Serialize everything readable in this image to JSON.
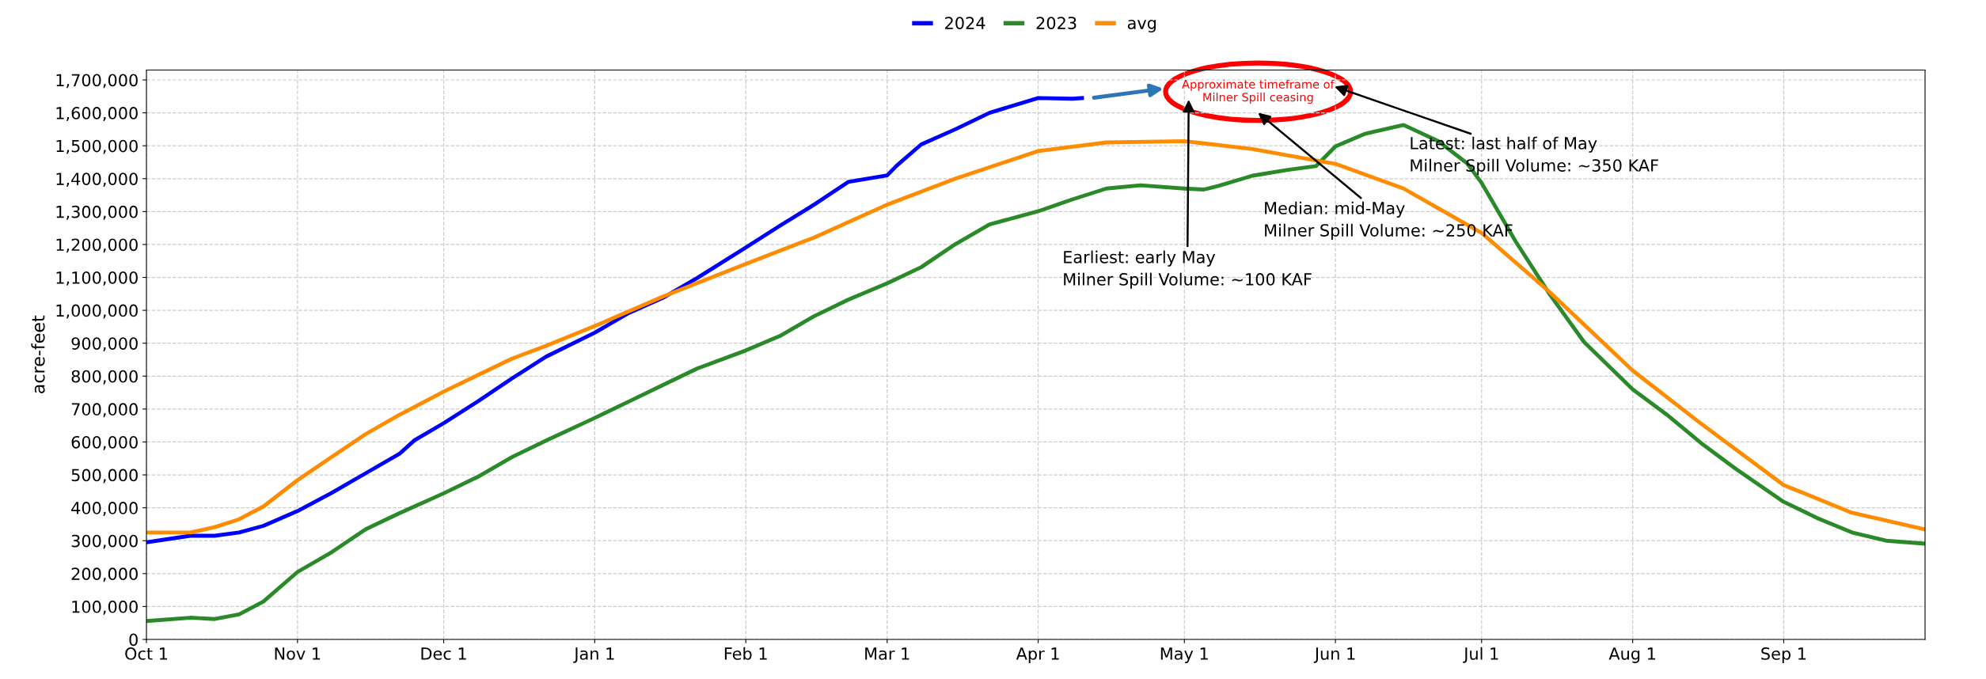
{
  "chart_data": {
    "type": "line",
    "ylabel": "acre-feet",
    "x": [
      "2023-10-01",
      "2023-10-10",
      "2023-10-15",
      "2023-10-20",
      "2023-10-25",
      "2023-11-01",
      "2023-11-08",
      "2023-11-15",
      "2023-11-22",
      "2023-11-25",
      "2023-12-01",
      "2023-12-08",
      "2023-12-15",
      "2023-12-22",
      "2024-01-01",
      "2024-01-08",
      "2024-01-15",
      "2024-01-22",
      "2024-02-01",
      "2024-02-08",
      "2024-02-15",
      "2024-02-22",
      "2024-03-01",
      "2024-03-03",
      "2024-03-08",
      "2024-03-15",
      "2024-03-22",
      "2024-04-01",
      "2024-04-08",
      "2024-04-10"
    ],
    "series": [
      {
        "name": "2024",
        "color": "#0000ff",
        "values": [
          295000,
          315000,
          315000,
          325000,
          345000,
          390000,
          445000,
          505000,
          565000,
          605000,
          657000,
          723000,
          793000,
          859000,
          932000,
          992000,
          1038000,
          1098000,
          1191000,
          1257000,
          1321000,
          1390000,
          1410000,
          1440000,
          1504000,
          1550000,
          1600000,
          1645000,
          1643000,
          1645000
        ]
      },
      {
        "name": "2023",
        "color": "#2a8a2a",
        "x": [
          "2023-10-01",
          "2023-10-10",
          "2023-10-15",
          "2023-10-20",
          "2023-10-25",
          "2023-11-01",
          "2023-11-08",
          "2023-11-15",
          "2023-11-22",
          "2023-12-01",
          "2023-12-08",
          "2023-12-15",
          "2023-12-22",
          "2024-01-01",
          "2024-01-08",
          "2024-01-15",
          "2024-01-22",
          "2024-02-01",
          "2024-02-08",
          "2024-02-15",
          "2024-02-22",
          "2024-03-01",
          "2024-03-08",
          "2024-03-15",
          "2024-03-22",
          "2024-04-01",
          "2024-04-08",
          "2024-04-15",
          "2024-04-22",
          "2024-05-01",
          "2024-05-05",
          "2024-05-08",
          "2024-05-15",
          "2024-05-22",
          "2024-05-28",
          "2024-06-01",
          "2024-06-07",
          "2024-06-15",
          "2024-06-22",
          "2024-06-28",
          "2024-07-01",
          "2024-07-08",
          "2024-07-15",
          "2024-07-22",
          "2024-08-01",
          "2024-08-08",
          "2024-08-15",
          "2024-08-22",
          "2024-09-01",
          "2024-09-08",
          "2024-09-15",
          "2024-09-22",
          "2024-09-30"
        ],
        "values": [
          56000,
          66000,
          62000,
          76000,
          115000,
          205000,
          265000,
          335000,
          384000,
          444000,
          494000,
          554000,
          604000,
          673000,
          723000,
          773000,
          823000,
          878000,
          922000,
          982000,
          1032000,
          1082000,
          1131000,
          1201000,
          1261000,
          1301000,
          1337000,
          1370000,
          1380000,
          1370000,
          1367000,
          1378000,
          1409000,
          1426000,
          1438000,
          1498000,
          1536000,
          1563000,
          1515000,
          1447000,
          1387000,
          1209000,
          1048000,
          904000,
          760000,
          683000,
          597000,
          520000,
          418000,
          368000,
          325000,
          300000,
          291000
        ]
      },
      {
        "name": "avg",
        "color": "#ff8c00",
        "x": [
          "2023-10-01",
          "2023-10-10",
          "2023-10-15",
          "2023-10-20",
          "2023-10-25",
          "2023-11-01",
          "2023-11-08",
          "2023-11-15",
          "2023-11-22",
          "2023-12-01",
          "2023-12-08",
          "2023-12-15",
          "2023-12-22",
          "2024-01-01",
          "2024-01-15",
          "2024-02-01",
          "2024-02-15",
          "2024-03-01",
          "2024-03-15",
          "2024-04-01",
          "2024-04-15",
          "2024-05-01",
          "2024-05-15",
          "2024-06-01",
          "2024-06-15",
          "2024-07-01",
          "2024-07-15",
          "2024-08-01",
          "2024-08-15",
          "2024-09-01",
          "2024-09-15",
          "2024-09-30"
        ],
        "values": [
          325000,
          325000,
          341000,
          365000,
          404000,
          484000,
          554000,
          624000,
          683000,
          753000,
          803000,
          853000,
          892000,
          952000,
          1042000,
          1141000,
          1221000,
          1321000,
          1400000,
          1484000,
          1510000,
          1514000,
          1490000,
          1445000,
          1370000,
          1235000,
          1055000,
          817000,
          656000,
          469000,
          385000,
          334000
        ]
      }
    ],
    "xlim": [
      "2023-10-01",
      "2024-09-30"
    ],
    "xticks": [
      {
        "value": "2023-10-01",
        "label": "Oct 1"
      },
      {
        "value": "2023-11-01",
        "label": "Nov 1"
      },
      {
        "value": "2023-12-01",
        "label": "Dec 1"
      },
      {
        "value": "2024-01-01",
        "label": "Jan 1"
      },
      {
        "value": "2024-02-01",
        "label": "Feb 1"
      },
      {
        "value": "2024-03-01",
        "label": "Mar 1"
      },
      {
        "value": "2024-04-01",
        "label": "Apr 1"
      },
      {
        "value": "2024-05-01",
        "label": "May 1"
      },
      {
        "value": "2024-06-01",
        "label": "Jun 1"
      },
      {
        "value": "2024-07-01",
        "label": "Jul 1"
      },
      {
        "value": "2024-08-01",
        "label": "Aug 1"
      },
      {
        "value": "2024-09-01",
        "label": "Sep 1"
      }
    ],
    "ylim": [
      0,
      1730000
    ],
    "yticks": [
      {
        "value": 0,
        "label": "0"
      },
      {
        "value": 100000,
        "label": "100,000"
      },
      {
        "value": 200000,
        "label": "200,000"
      },
      {
        "value": 300000,
        "label": "300,000"
      },
      {
        "value": 400000,
        "label": "400,000"
      },
      {
        "value": 500000,
        "label": "500,000"
      },
      {
        "value": 600000,
        "label": "600,000"
      },
      {
        "value": 700000,
        "label": "700,000"
      },
      {
        "value": 800000,
        "label": "800,000"
      },
      {
        "value": 900000,
        "label": "900,000"
      },
      {
        "value": 1000000,
        "label": "1,000,000"
      },
      {
        "value": 1100000,
        "label": "1,100,000"
      },
      {
        "value": 1200000,
        "label": "1,200,000"
      },
      {
        "value": 1300000,
        "label": "1,300,000"
      },
      {
        "value": 1400000,
        "label": "1,400,000"
      },
      {
        "value": 1500000,
        "label": "1,500,000"
      },
      {
        "value": 1600000,
        "label": "1,600,000"
      },
      {
        "value": 1700000,
        "label": "1,700,000"
      }
    ],
    "grid": true,
    "legend": "top",
    "marker": "none",
    "line_style": "solid",
    "annotations": [
      "Approximate timeframe of\nMilner Spill ceasing",
      "Earliest: early May\nMilner Spill Volume: ~100 KAF",
      "Median: mid-May\nMilner Spill Volume: ~250 KAF",
      "Latest: last half of May\nMilner Spill Volume: ~350 KAF"
    ]
  }
}
